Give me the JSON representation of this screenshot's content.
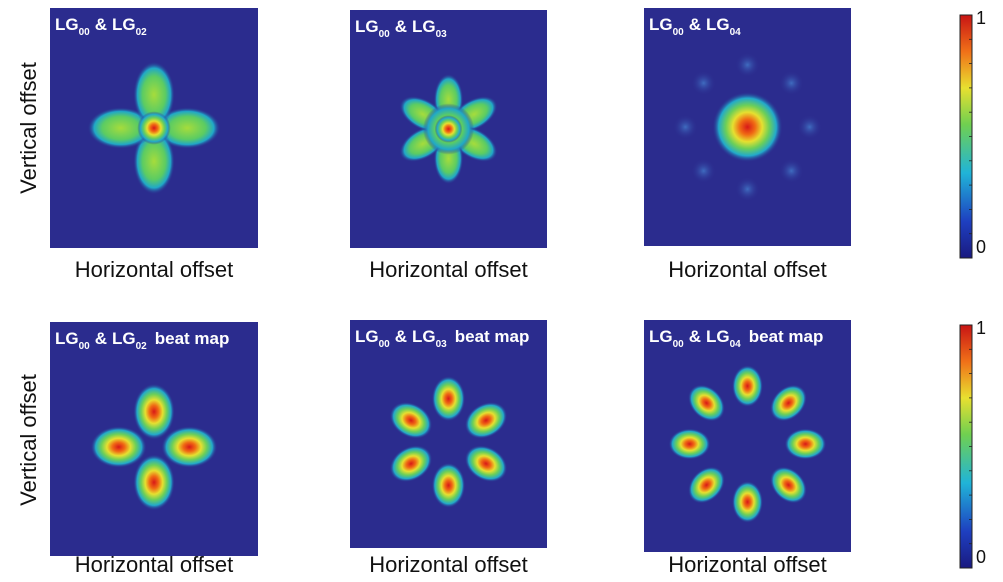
{
  "panels": [
    {
      "title": {
        "first": "LG",
        "first_sub": "00",
        "join": "&",
        "second": "LG",
        "second_sub": "02"
      },
      "x_label": "Horizontal offset"
    },
    {
      "title": {
        "first": "LG",
        "first_sub": "00",
        "join": "&",
        "second": "LG",
        "second_sub": "03"
      },
      "x_label": "Horizontal offset"
    },
    {
      "title": {
        "first": "LG",
        "first_sub": "00",
        "join": "&",
        "second": "LG",
        "second_sub": "04"
      },
      "x_label": "Horizontal offset"
    },
    {
      "title": {
        "first": "LG",
        "first_sub": "00",
        "join": "&",
        "second": "LG",
        "second_sub": "02",
        "suffix": "beat map"
      },
      "x_label": "Horizontal offset"
    },
    {
      "title": {
        "first": "LG",
        "first_sub": "00",
        "join": "&",
        "second": "LG",
        "second_sub": "03",
        "suffix": "beat map"
      },
      "x_label": "Horizontal offset"
    },
    {
      "title": {
        "first": "LG",
        "first_sub": "00",
        "join": "&",
        "second": "LG",
        "second_sub": "04",
        "suffix": "beat map"
      },
      "x_label": "Horizontal offset"
    }
  ],
  "row_labels": [
    "Vertical offset",
    "Vertical offset"
  ],
  "colorbars": [
    {
      "max": 1,
      "min": 0
    },
    {
      "max": 1,
      "min": 0
    }
  ]
}
